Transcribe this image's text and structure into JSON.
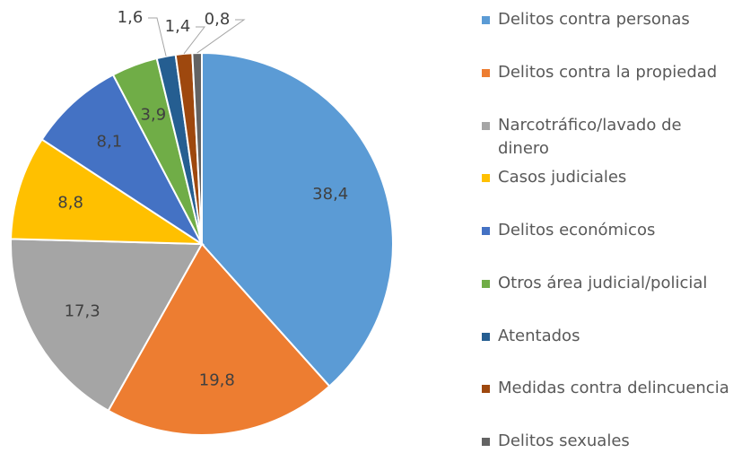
{
  "chart_data": {
    "type": "pie",
    "categories": [
      "Delitos contra personas",
      "Delitos contra la propiedad",
      "Narcotráfico/lavado de dinero",
      "Casos judiciales",
      "Delitos económicos",
      "Otros área judicial/policial",
      "Atentados",
      "Medidas contra delincuencia",
      "Delitos sexuales"
    ],
    "values": [
      38.4,
      19.8,
      17.3,
      8.8,
      8.1,
      3.9,
      1.6,
      1.4,
      0.8
    ],
    "value_labels": [
      "38,4",
      "19,8",
      "17,3",
      "8,8",
      "8,1",
      "3,9",
      "1,6",
      "1,4",
      "0,8"
    ],
    "colors": [
      "#5b9bd5",
      "#ed7d31",
      "#a5a5a5",
      "#ffc000",
      "#4472c4",
      "#70ad47",
      "#255e91",
      "#9e480e",
      "#636363"
    ],
    "legend": "right"
  }
}
